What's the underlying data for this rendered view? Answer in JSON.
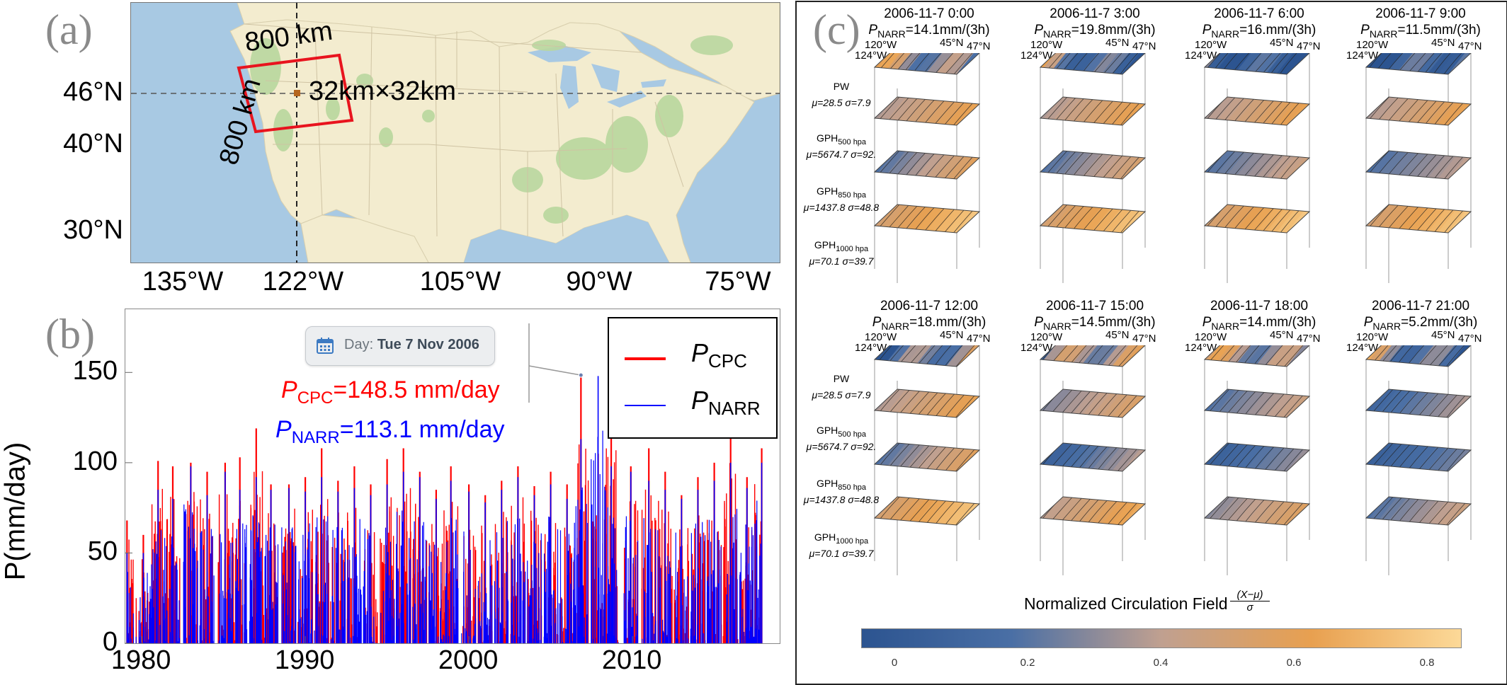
{
  "panel_a": {
    "letter": "(a)",
    "lat_labels": [
      {
        "text": "46°N",
        "lat": 46
      },
      {
        "text": "40°N",
        "lat": 40
      },
      {
        "text": "30°N",
        "lat": 30
      }
    ],
    "lon_labels": [
      {
        "text": "135°W",
        "lon": -135
      },
      {
        "text": "122°W",
        "lon": -122
      },
      {
        "text": "105°W",
        "lon": -105
      },
      {
        "text": "90°W",
        "lon": -90
      },
      {
        "text": "75°W",
        "lon": -75
      }
    ],
    "box_label_top": "800 km",
    "box_label_side": "800 km",
    "grid_label": "32km×32km",
    "colors": {
      "ocean": "#a8c9e3",
      "land": "#f3eccf",
      "green": "#b9d79e",
      "box": "#e8141e",
      "cell": "#b5651d"
    }
  },
  "chart_data": {
    "type": "bar",
    "letter": "(b)",
    "ylabel": "P(mm/day)",
    "ylim": [
      0,
      185
    ],
    "xlim": [
      1979,
      2019
    ],
    "yticks": [
      {
        "label": "0",
        "value": 0
      },
      {
        "label": "50",
        "value": 50
      },
      {
        "label": "100",
        "value": 100
      },
      {
        "label": "150",
        "value": 150
      }
    ],
    "xticks": [
      {
        "label": "1980",
        "value": 1980
      },
      {
        "label": "1990",
        "value": 1990
      },
      {
        "label": "2000",
        "value": 2000
      },
      {
        "label": "2010",
        "value": 2010
      }
    ],
    "series": [
      {
        "name_base": "P",
        "name_sub": "CPC",
        "color": "#ff0000",
        "peaks": [
          {
            "year": 1979.1,
            "value": 68
          },
          {
            "year": 1980.1,
            "value": 60
          },
          {
            "year": 1981.0,
            "value": 101
          },
          {
            "year": 1981.9,
            "value": 98
          },
          {
            "year": 1983.0,
            "value": 100
          },
          {
            "year": 1984.0,
            "value": 95
          },
          {
            "year": 1985.1,
            "value": 100
          },
          {
            "year": 1986.0,
            "value": 103
          },
          {
            "year": 1987.0,
            "value": 119
          },
          {
            "year": 1987.9,
            "value": 88
          },
          {
            "year": 1989.0,
            "value": 88
          },
          {
            "year": 1990.0,
            "value": 92
          },
          {
            "year": 1991.0,
            "value": 108
          },
          {
            "year": 1992.0,
            "value": 90
          },
          {
            "year": 1993.0,
            "value": 98
          },
          {
            "year": 1994.0,
            "value": 88
          },
          {
            "year": 1995.0,
            "value": 102
          },
          {
            "year": 1996.0,
            "value": 108
          },
          {
            "year": 1997.0,
            "value": 95
          },
          {
            "year": 1998.0,
            "value": 85
          },
          {
            "year": 1998.9,
            "value": 98
          },
          {
            "year": 2000.0,
            "value": 88
          },
          {
            "year": 2001.0,
            "value": 82
          },
          {
            "year": 2002.0,
            "value": 90
          },
          {
            "year": 2003.0,
            "value": 98
          },
          {
            "year": 2004.0,
            "value": 87
          },
          {
            "year": 2005.0,
            "value": 95
          },
          {
            "year": 2006.0,
            "value": 88
          },
          {
            "year": 2006.85,
            "value": 148.5
          },
          {
            "year": 2007.9,
            "value": 105
          },
          {
            "year": 2008.7,
            "value": 128
          },
          {
            "year": 2009.9,
            "value": 98
          },
          {
            "year": 2011.0,
            "value": 108
          },
          {
            "year": 2012.0,
            "value": 95
          },
          {
            "year": 2013.0,
            "value": 82
          },
          {
            "year": 2014.0,
            "value": 92
          },
          {
            "year": 2015.0,
            "value": 100
          },
          {
            "year": 2016.0,
            "value": 118
          },
          {
            "year": 2017.0,
            "value": 92
          },
          {
            "year": 2017.9,
            "value": 108
          }
        ]
      },
      {
        "name_base": "P",
        "name_sub": "NARR",
        "color": "#0000ff",
        "peaks": [
          {
            "year": 1979.1,
            "value": 50
          },
          {
            "year": 1980.1,
            "value": 50
          },
          {
            "year": 1981.0,
            "value": 85
          },
          {
            "year": 1981.9,
            "value": 80
          },
          {
            "year": 1983.0,
            "value": 98
          },
          {
            "year": 1984.0,
            "value": 82
          },
          {
            "year": 1985.1,
            "value": 95
          },
          {
            "year": 1986.0,
            "value": 85
          },
          {
            "year": 1987.0,
            "value": 92
          },
          {
            "year": 1987.9,
            "value": 85
          },
          {
            "year": 1989.0,
            "value": 86
          },
          {
            "year": 1990.0,
            "value": 84
          },
          {
            "year": 1991.0,
            "value": 92
          },
          {
            "year": 1992.0,
            "value": 84
          },
          {
            "year": 1993.0,
            "value": 86
          },
          {
            "year": 1994.0,
            "value": 82
          },
          {
            "year": 1995.0,
            "value": 88
          },
          {
            "year": 1996.0,
            "value": 95
          },
          {
            "year": 1997.0,
            "value": 92
          },
          {
            "year": 1998.0,
            "value": 80
          },
          {
            "year": 1998.9,
            "value": 90
          },
          {
            "year": 2000.0,
            "value": 84
          },
          {
            "year": 2001.0,
            "value": 78
          },
          {
            "year": 2002.0,
            "value": 85
          },
          {
            "year": 2003.0,
            "value": 92
          },
          {
            "year": 2004.0,
            "value": 82
          },
          {
            "year": 2005.0,
            "value": 88
          },
          {
            "year": 2006.0,
            "value": 80
          },
          {
            "year": 2006.85,
            "value": 113.1
          },
          {
            "year": 2007.9,
            "value": 148
          },
          {
            "year": 2008.7,
            "value": 98
          },
          {
            "year": 2009.9,
            "value": 95
          },
          {
            "year": 2011.0,
            "value": 90
          },
          {
            "year": 2012.0,
            "value": 85
          },
          {
            "year": 2013.0,
            "value": 80
          },
          {
            "year": 2014.0,
            "value": 85
          },
          {
            "year": 2015.0,
            "value": 90
          },
          {
            "year": 2016.0,
            "value": 100
          },
          {
            "year": 2017.0,
            "value": 86
          },
          {
            "year": 2017.9,
            "value": 100
          }
        ]
      }
    ],
    "tooltip": {
      "prefix": "Day:",
      "value": "Tue 7 Nov 2006",
      "year": 2006.85,
      "value_mm": 148.5
    },
    "annotations": [
      {
        "base": "P",
        "sub": "CPC",
        "text": "=148.5 mm/day",
        "color": "#ff0000"
      },
      {
        "base": "P",
        "sub": "NARR",
        "text": "=113.1 mm/day",
        "color": "#0000ff"
      }
    ],
    "legend_position": "top-right"
  },
  "panel_c": {
    "letter": "(c)",
    "snapshots": [
      {
        "time": "2006-11-7 0:00",
        "p": "=14.1mm/(3h)",
        "seed": 1
      },
      {
        "time": "2006-11-7 3:00",
        "p": "=19.8mm/(3h)",
        "seed": 2
      },
      {
        "time": "2006-11-7 6:00",
        "p": "=16.mm/(3h)",
        "seed": 3
      },
      {
        "time": "2006-11-7 9:00",
        "p": "=11.5mm/(3h)",
        "seed": 4
      },
      {
        "time": "2006-11-7 12:00",
        "p": "=18.mm/(3h)",
        "seed": 5
      },
      {
        "time": "2006-11-7 15:00",
        "p": "=14.5mm/(3h)",
        "seed": 6
      },
      {
        "time": "2006-11-7 18:00",
        "p": "=14.mm/(3h)",
        "seed": 7
      },
      {
        "time": "2006-11-7 21:00",
        "p": "=5.2mm/(3h)",
        "seed": 8
      }
    ],
    "p_base": "P",
    "p_sub": "NARR",
    "axis_labels": {
      "lon1": "120°W",
      "lon2": "124°W",
      "lat1": "45°N",
      "lat2": "47°N"
    },
    "levels": [
      {
        "base": "PW",
        "sub": "",
        "stats": "μ=28.5 σ=7.9"
      },
      {
        "base": "GPH",
        "sub": "500 hpa",
        "stats": "μ=5674.7 σ=92."
      },
      {
        "base": "GPH",
        "sub": "850 hpa",
        "stats": "μ=1437.8 σ=48.8"
      },
      {
        "base": "GPH",
        "sub": "1000 hpa",
        "stats": "μ=70.1 σ=39.7"
      }
    ],
    "colorbar": {
      "title": "Normalized Circulation Field",
      "formula_num": "(X−μ)",
      "formula_den": "σ",
      "ticks": [
        {
          "label": "0",
          "value": 0
        },
        {
          "label": "0.2",
          "value": 0.2
        },
        {
          "label": "0.4",
          "value": 0.4
        },
        {
          "label": "0.6",
          "value": 0.6
        },
        {
          "label": "0.8",
          "value": 0.8
        }
      ],
      "range": [
        -0.05,
        0.85
      ],
      "colors": [
        "#2c5490",
        "#4a6fa5",
        "#c0a090",
        "#e8a050",
        "#fcd998"
      ]
    }
  }
}
